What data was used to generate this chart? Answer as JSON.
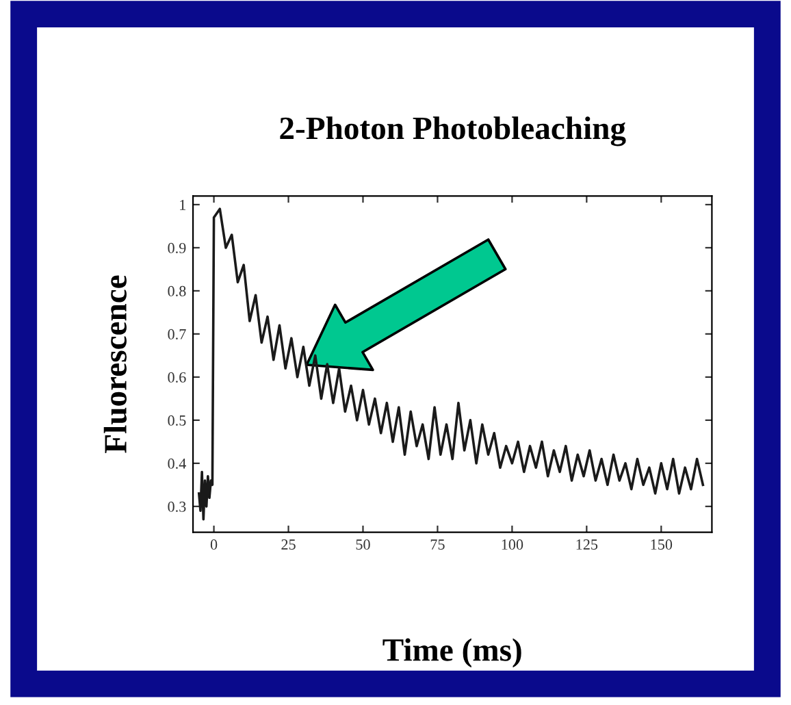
{
  "chart_data": {
    "type": "line",
    "title": "2-Photon Photobleaching",
    "xlabel": "Time (ms)",
    "ylabel": "Fluorescence",
    "x": [
      -5,
      -4.5,
      -4,
      -3.5,
      -3,
      -2.5,
      -2,
      -1.5,
      -1,
      -0.5,
      0,
      2,
      4,
      6,
      8,
      10,
      12,
      14,
      16,
      18,
      20,
      22,
      24,
      26,
      28,
      30,
      32,
      34,
      36,
      38,
      40,
      42,
      44,
      46,
      48,
      50,
      52,
      54,
      56,
      58,
      60,
      62,
      64,
      66,
      68,
      70,
      72,
      74,
      76,
      78,
      80,
      82,
      84,
      86,
      88,
      90,
      92,
      94,
      96,
      98,
      100,
      102,
      104,
      106,
      108,
      110,
      112,
      114,
      116,
      118,
      120,
      122,
      124,
      126,
      128,
      130,
      132,
      134,
      136,
      138,
      140,
      142,
      144,
      146,
      148,
      150,
      152,
      154,
      156,
      158,
      160,
      162,
      164
    ],
    "series": [
      {
        "color": "#1a1a1a",
        "values": [
          0.33,
          0.29,
          0.38,
          0.27,
          0.36,
          0.3,
          0.37,
          0.32,
          0.36,
          0.35,
          0.97,
          0.99,
          0.9,
          0.93,
          0.82,
          0.86,
          0.73,
          0.79,
          0.68,
          0.74,
          0.64,
          0.72,
          0.62,
          0.69,
          0.6,
          0.67,
          0.58,
          0.65,
          0.55,
          0.63,
          0.54,
          0.62,
          0.52,
          0.58,
          0.5,
          0.57,
          0.49,
          0.55,
          0.47,
          0.54,
          0.45,
          0.53,
          0.42,
          0.52,
          0.44,
          0.49,
          0.41,
          0.53,
          0.42,
          0.49,
          0.41,
          0.54,
          0.43,
          0.5,
          0.4,
          0.49,
          0.42,
          0.47,
          0.39,
          0.44,
          0.4,
          0.45,
          0.38,
          0.44,
          0.39,
          0.45,
          0.37,
          0.43,
          0.38,
          0.44,
          0.36,
          0.42,
          0.37,
          0.43,
          0.36,
          0.41,
          0.35,
          0.42,
          0.36,
          0.4,
          0.34,
          0.41,
          0.35,
          0.39,
          0.33,
          0.4,
          0.34,
          0.41,
          0.33,
          0.39,
          0.34,
          0.41,
          0.35
        ]
      }
    ],
    "xlim": [
      -7,
      167
    ],
    "ylim": [
      0.24,
      1.02
    ],
    "xticks": [
      0,
      25,
      50,
      75,
      100,
      125,
      150
    ],
    "yticks": [
      0.3,
      0.4,
      0.5,
      0.6,
      0.7,
      0.8,
      0.9,
      1
    ],
    "grid": false,
    "marker": "none",
    "line_style": "solid"
  }
}
